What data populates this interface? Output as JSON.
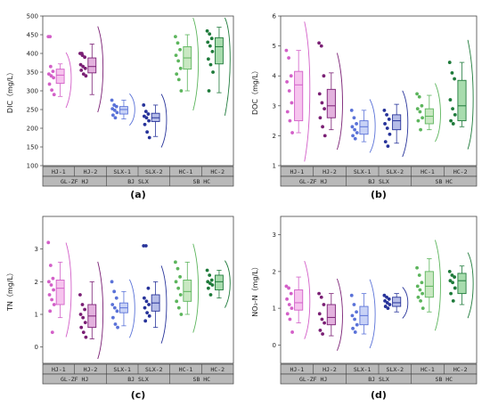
{
  "chart_data": [
    {
      "type": "box",
      "panel_label": "(a)",
      "ylabel": "DIC（mg/L）",
      "ylim": [
        100,
        500
      ],
      "yticks": [
        100,
        150,
        200,
        250,
        300,
        350,
        400,
        450,
        500
      ],
      "categories": [
        "HJ-1",
        "HJ-2",
        "SLX-1",
        "SLX-2",
        "HC-1",
        "HC-2"
      ],
      "groups": [
        "GL-ZF HJ",
        "BJ SLX",
        "SB HC"
      ],
      "series": [
        {
          "category": "HJ-1",
          "color": "#d35fc8",
          "fill": "#f6c4ee",
          "q1": 320,
          "median": 342,
          "q3": 358,
          "whisker_low": 285,
          "whisker_high": 372,
          "points": [
            445,
            365,
            352,
            345,
            340,
            335,
            318,
            302,
            290,
            445
          ]
        },
        {
          "category": "HJ-2",
          "color": "#7a1f74",
          "fill": "#e3b2de",
          "q1": 348,
          "median": 365,
          "q3": 388,
          "whisker_low": 290,
          "whisker_high": 425,
          "points": [
            400,
            395,
            390,
            370,
            365,
            360,
            355,
            345,
            340,
            400
          ]
        },
        {
          "category": "SLX-1",
          "color": "#5a72d8",
          "fill": "#c8d2f6",
          "q1": 238,
          "median": 250,
          "q3": 258,
          "whisker_low": 225,
          "whisker_high": 275,
          "points": [
            275,
            262,
            258,
            252,
            248,
            242,
            235,
            228
          ]
        },
        {
          "category": "SLX-2",
          "color": "#27339a",
          "fill": "#b6bde8",
          "q1": 218,
          "median": 228,
          "q3": 240,
          "whisker_low": 178,
          "whisker_high": 262,
          "points": [
            262,
            245,
            238,
            232,
            228,
            220,
            210,
            190,
            175
          ]
        },
        {
          "category": "HC-1",
          "color": "#5cb55c",
          "fill": "#c9e8c2",
          "q1": 358,
          "median": 388,
          "q3": 418,
          "whisker_low": 300,
          "whisker_high": 450,
          "points": [
            445,
            428,
            410,
            395,
            380,
            360,
            345,
            330,
            300
          ]
        },
        {
          "category": "HC-2",
          "color": "#1e7a3a",
          "fill": "#a8dcae",
          "q1": 372,
          "median": 418,
          "q3": 442,
          "whisker_low": 295,
          "whisker_high": 470,
          "points": [
            460,
            452,
            440,
            430,
            420,
            405,
            385,
            370,
            350,
            300
          ]
        }
      ]
    },
    {
      "type": "box",
      "panel_label": "(b)",
      "ylabel": "DOC（mg/L）",
      "ylim": [
        1,
        6
      ],
      "yticks": [
        1,
        2,
        3,
        4,
        5,
        6
      ],
      "categories": [
        "HJ-1",
        "HJ-2",
        "SLX-1",
        "SLX-2",
        "HC-1",
        "HC-2"
      ],
      "groups": [
        "GL-ZF HJ",
        "BJ SLX",
        "SB HC"
      ],
      "series": [
        {
          "category": "HJ-1",
          "color": "#d35fc8",
          "fill": "#f6c4ee",
          "q1": 2.5,
          "median": 3.7,
          "q3": 4.15,
          "whisker_low": 2.1,
          "whisker_high": 4.85,
          "points": [
            4.85,
            4.6,
            4.0,
            3.8,
            3.5,
            3.1,
            2.8,
            2.5,
            2.1
          ]
        },
        {
          "category": "HJ-2",
          "color": "#7a1f74",
          "fill": "#e3b2de",
          "q1": 2.6,
          "median": 3.0,
          "q3": 3.55,
          "whisker_low": 2.2,
          "whisker_high": 4.1,
          "points": [
            5.1,
            5.0,
            4.0,
            3.4,
            3.1,
            2.9,
            2.6,
            2.3,
            2.0
          ]
        },
        {
          "category": "SLX-1",
          "color": "#5a72d8",
          "fill": "#c8d2f6",
          "q1": 2.05,
          "median": 2.3,
          "q3": 2.5,
          "whisker_low": 1.8,
          "whisker_high": 2.85,
          "points": [
            2.85,
            2.6,
            2.4,
            2.3,
            2.2,
            2.1,
            2.0,
            1.9
          ]
        },
        {
          "category": "SLX-2",
          "color": "#27339a",
          "fill": "#b6bde8",
          "q1": 2.2,
          "median": 2.5,
          "q3": 2.7,
          "whisker_low": 1.75,
          "whisker_high": 3.05,
          "points": [
            2.85,
            2.7,
            2.55,
            2.4,
            2.25,
            2.05,
            1.8,
            1.65
          ]
        },
        {
          "category": "HC-1",
          "color": "#5cb55c",
          "fill": "#c9e8c2",
          "q1": 2.4,
          "median": 2.65,
          "q3": 2.9,
          "whisker_low": 2.2,
          "whisker_high": 3.35,
          "points": [
            3.4,
            3.3,
            3.0,
            2.9,
            2.8,
            2.6,
            2.5,
            2.2
          ]
        },
        {
          "category": "HC-2",
          "color": "#1e7a3a",
          "fill": "#a8dcae",
          "q1": 2.5,
          "median": 3.0,
          "q3": 3.85,
          "whisker_low": 2.3,
          "whisker_high": 4.45,
          "points": [
            4.45,
            4.1,
            3.9,
            3.2,
            2.9,
            2.7,
            2.5,
            2.4
          ]
        }
      ]
    },
    {
      "type": "box",
      "panel_label": "(c)",
      "ylabel": "TN（mg/L）",
      "ylim": [
        -0.5,
        4
      ],
      "yticks": [
        0,
        1,
        2,
        3
      ],
      "categories": [
        "HJ-1",
        "HJ-2",
        "SLX-1",
        "SLX-2",
        "HC-1",
        "HC-2"
      ],
      "groups": [
        "GL-ZF HJ",
        "BJ SLX",
        "SB HC"
      ],
      "series": [
        {
          "category": "HJ-1",
          "color": "#d35fc8",
          "fill": "#f6c4ee",
          "q1": 1.3,
          "median": 1.8,
          "q3": 2.05,
          "whisker_low": 0.9,
          "whisker_high": 2.6,
          "points": [
            3.2,
            2.5,
            2.1,
            2.0,
            1.9,
            1.75,
            1.6,
            1.45,
            1.3,
            1.1,
            0.45
          ]
        },
        {
          "category": "HJ-2",
          "color": "#7a1f74",
          "fill": "#e3b2de",
          "q1": 0.6,
          "median": 0.95,
          "q3": 1.3,
          "whisker_low": 0.25,
          "whisker_high": 2.0,
          "points": [
            1.6,
            1.3,
            1.15,
            1.0,
            0.9,
            0.75,
            0.6,
            0.45,
            0.3
          ]
        },
        {
          "category": "SLX-1",
          "color": "#5a72d8",
          "fill": "#c8d2f6",
          "q1": 1.05,
          "median": 1.2,
          "q3": 1.35,
          "whisker_low": 0.65,
          "whisker_high": 1.7,
          "points": [
            2.0,
            1.7,
            1.5,
            1.3,
            1.2,
            1.1,
            0.9,
            0.7,
            0.6
          ]
        },
        {
          "category": "SLX-2",
          "color": "#27339a",
          "fill": "#b6bde8",
          "q1": 1.1,
          "median": 1.35,
          "q3": 1.6,
          "whisker_low": 0.6,
          "whisker_high": 2.0,
          "points": [
            3.1,
            3.1,
            1.8,
            1.5,
            1.4,
            1.3,
            1.2,
            1.05,
            0.95,
            0.8
          ]
        },
        {
          "category": "HC-1",
          "color": "#5cb55c",
          "fill": "#c9e8c2",
          "q1": 1.4,
          "median": 1.7,
          "q3": 2.05,
          "whisker_low": 1.0,
          "whisker_high": 2.6,
          "points": [
            2.6,
            2.4,
            2.15,
            2.0,
            1.8,
            1.6,
            1.4,
            1.2,
            1.0
          ]
        },
        {
          "category": "HC-2",
          "color": "#1e7a3a",
          "fill": "#a8dcae",
          "q1": 1.75,
          "median": 2.0,
          "q3": 2.2,
          "whisker_low": 1.5,
          "whisker_high": 2.35,
          "points": [
            2.35,
            2.2,
            2.05,
            2.0,
            1.95,
            1.9,
            1.8,
            1.6
          ]
        }
      ]
    },
    {
      "type": "box",
      "panel_label": "(d)",
      "ylabel": "NO₃-N（mg/L）",
      "ylim": [
        -0.5,
        3.5
      ],
      "yticks": [
        0,
        1,
        2,
        3
      ],
      "categories": [
        "HJ-1",
        "HJ-2",
        "SLX-1",
        "SLX-2",
        "HC-1",
        "HC-2"
      ],
      "groups": [
        "GL-ZF HJ",
        "BJ SLX",
        "SB HC"
      ],
      "series": [
        {
          "category": "HJ-1",
          "color": "#d35fc8",
          "fill": "#f6c4ee",
          "q1": 0.95,
          "median": 1.15,
          "q3": 1.5,
          "whisker_low": 0.6,
          "whisker_high": 1.85,
          "points": [
            1.6,
            1.55,
            1.4,
            1.25,
            1.1,
            1.0,
            0.85,
            0.7,
            0.35
          ]
        },
        {
          "category": "HJ-2",
          "color": "#7a1f74",
          "fill": "#e3b2de",
          "q1": 0.55,
          "median": 0.75,
          "q3": 1.1,
          "whisker_low": 0.25,
          "whisker_high": 1.4,
          "points": [
            1.4,
            1.3,
            1.1,
            0.85,
            0.7,
            0.6,
            0.4,
            0.3
          ]
        },
        {
          "category": "SLX-1",
          "color": "#5a72d8",
          "fill": "#c8d2f6",
          "q1": 0.55,
          "median": 0.8,
          "q3": 1.05,
          "whisker_low": 0.3,
          "whisker_high": 1.4,
          "points": [
            1.35,
            1.1,
            0.9,
            0.8,
            0.7,
            0.55,
            0.45,
            0.35
          ]
        },
        {
          "category": "SLX-2",
          "color": "#27339a",
          "fill": "#b6bde8",
          "q1": 1.05,
          "median": 1.15,
          "q3": 1.3,
          "whisker_low": 0.9,
          "whisker_high": 1.4,
          "points": [
            1.35,
            1.3,
            1.25,
            1.2,
            1.15,
            1.1,
            1.05,
            1.0
          ]
        },
        {
          "category": "HC-1",
          "color": "#5cb55c",
          "fill": "#c9e8c2",
          "q1": 1.3,
          "median": 1.6,
          "q3": 2.0,
          "whisker_low": 0.9,
          "whisker_high": 2.35,
          "points": [
            2.1,
            1.9,
            1.7,
            1.6,
            1.5,
            1.4,
            1.3,
            1.2,
            1.0
          ]
        },
        {
          "category": "HC-2",
          "color": "#1e7a3a",
          "fill": "#a8dcae",
          "q1": 1.4,
          "median": 1.75,
          "q3": 1.95,
          "whisker_low": 1.1,
          "whisker_high": 2.15,
          "points": [
            2.0,
            1.9,
            1.85,
            1.75,
            1.7,
            1.55,
            1.4,
            1.2
          ]
        }
      ]
    }
  ]
}
